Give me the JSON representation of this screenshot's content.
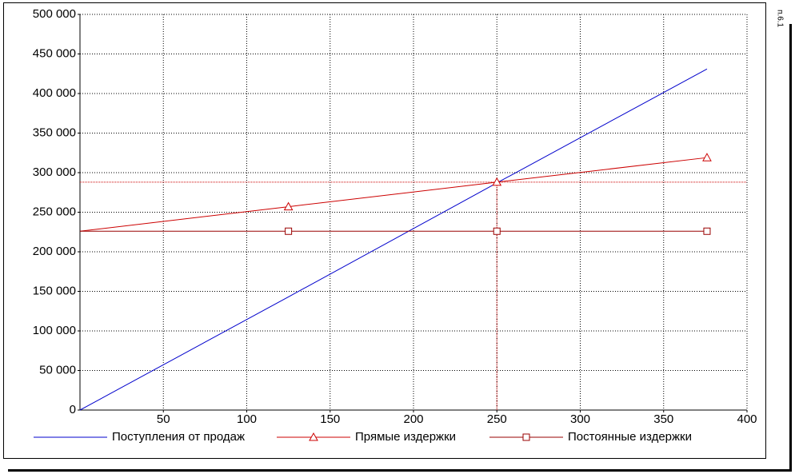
{
  "side_label": "п.6.1",
  "chart_data": {
    "type": "line",
    "x": [
      0,
      125,
      250,
      376
    ],
    "series": [
      {
        "name": "Поступления от продаж",
        "color": "#0000cc",
        "marker": "none",
        "values": [
          0,
          143000,
          287000,
          431000
        ]
      },
      {
        "name": "Прямые издержки",
        "color": "#cc0000",
        "marker": "triangle",
        "values": [
          226000,
          257000,
          288000,
          319000
        ]
      },
      {
        "name": "Постоянные издержки",
        "color": "#990000",
        "marker": "square",
        "values": [
          226000,
          226000,
          226000,
          226000
        ]
      }
    ],
    "break_even": {
      "x": 250,
      "y": 288000,
      "color": "#cc0000"
    },
    "xlim": [
      0,
      400
    ],
    "xticks": [
      50,
      100,
      150,
      200,
      250,
      300,
      350,
      400
    ],
    "ylim": [
      0,
      500000
    ],
    "yticks": [
      {
        "value": 0,
        "label": "0"
      },
      {
        "value": 50000,
        "label": "50 000"
      },
      {
        "value": 100000,
        "label": "100 000"
      },
      {
        "value": 150000,
        "label": "150 000"
      },
      {
        "value": 200000,
        "label": "200 000"
      },
      {
        "value": 250000,
        "label": "250 000"
      },
      {
        "value": 300000,
        "label": "300 000"
      },
      {
        "value": 350000,
        "label": "350 000"
      },
      {
        "value": 400000,
        "label": "400 000"
      },
      {
        "value": 450000,
        "label": "450 000"
      },
      {
        "value": 500000,
        "label": "500 000"
      }
    ],
    "grid": true
  }
}
